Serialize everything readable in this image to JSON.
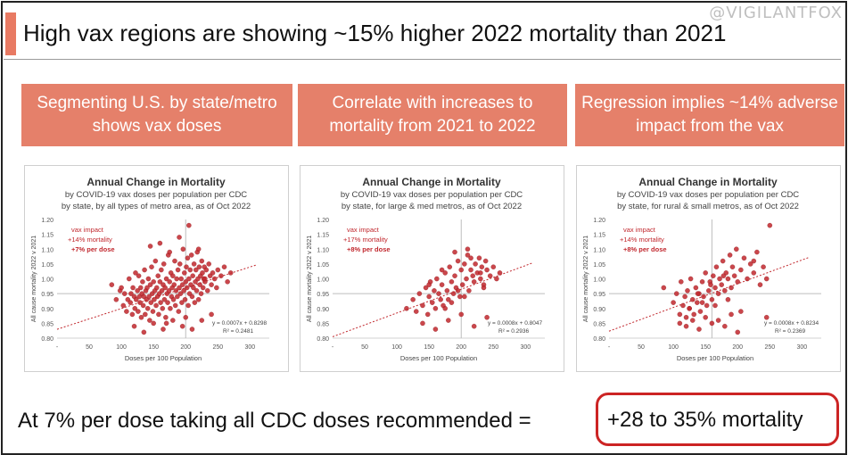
{
  "watermark": "@VIGILANTFOX",
  "title": "High vax regions are showing ~15% higher 2022 mortality than 2021",
  "headers": [
    "Segmenting U.S. by state/metro shows vax doses",
    "Correlate with increases to mortality from 2021 to 2022",
    "Regression implies ~14% adverse impact from the vax"
  ],
  "bottom_text": "At 7% per dose taking all CDC doses recommended =",
  "highlight_text": "+28 to 35% mortality",
  "colors": {
    "accent": "#e5806a",
    "point": "#c1272d",
    "highlight_border": "#cc2424"
  },
  "chart_data": [
    {
      "type": "scatter",
      "title": "Annual Change in Mortality",
      "subtitle1": "by COVID-19 vax doses per population per CDC",
      "subtitle2": "by state, by all types of metro area, as of Oct 2022",
      "xlabel": "Doses per 100 Population",
      "ylabel": "All cause mortality 2022 v 2021",
      "xlim": [
        0,
        330
      ],
      "ylim": [
        0.8,
        1.2
      ],
      "xticks": [
        50,
        100,
        150,
        200,
        250,
        300
      ],
      "yticks": [
        "0.80",
        "0.85",
        "0.90",
        "0.95",
        "1.00",
        "1.05",
        "1.10",
        "1.15",
        "1.20"
      ],
      "annotation": [
        "vax impact",
        "+14% mortality",
        "+7% per dose"
      ],
      "equation": "y = 0.0007x + 0.8298",
      "r2": "R² = 0.2481",
      "trend": {
        "slope": 0.0007,
        "intercept": 0.8298
      },
      "ref_x": 200,
      "ref_y": 0.95,
      "x": [
        85,
        92,
        98,
        100,
        103,
        105,
        108,
        110,
        112,
        114,
        115,
        117,
        118,
        120,
        121,
        122,
        123,
        125,
        126,
        127,
        128,
        129,
        130,
        131,
        132,
        133,
        134,
        135,
        136,
        137,
        138,
        139,
        140,
        141,
        142,
        143,
        144,
        145,
        146,
        147,
        148,
        149,
        150,
        151,
        152,
        153,
        154,
        155,
        156,
        157,
        158,
        159,
        160,
        161,
        162,
        163,
        164,
        165,
        166,
        167,
        168,
        169,
        170,
        171,
        172,
        173,
        174,
        175,
        176,
        177,
        178,
        179,
        180,
        181,
        182,
        183,
        184,
        185,
        186,
        187,
        188,
        189,
        190,
        191,
        192,
        193,
        194,
        195,
        196,
        197,
        198,
        199,
        200,
        201,
        202,
        203,
        204,
        205,
        206,
        207,
        208,
        209,
        210,
        211,
        212,
        213,
        214,
        215,
        216,
        217,
        218,
        219,
        220,
        221,
        222,
        223,
        224,
        225,
        226,
        227,
        228,
        229,
        230,
        232,
        234,
        236,
        238,
        240,
        242,
        245,
        248,
        250,
        255,
        260,
        265,
        270,
        120,
        135,
        150,
        165,
        180,
        195,
        210,
        225,
        240,
        160,
        175,
        190,
        205,
        220,
        145,
        170,
        200,
        230
      ],
      "y": [
        0.98,
        0.93,
        0.96,
        0.97,
        0.91,
        0.95,
        0.89,
        0.93,
        1.0,
        0.92,
        0.95,
        0.88,
        0.97,
        0.94,
        0.9,
        1.02,
        0.93,
        0.96,
        0.89,
        1.01,
        0.94,
        0.92,
        0.97,
        0.87,
        0.95,
        0.99,
        0.91,
        0.94,
        1.03,
        0.88,
        0.96,
        0.93,
        0.97,
        0.9,
        1.0,
        0.94,
        0.86,
        0.98,
        0.92,
        1.04,
        0.95,
        0.89,
        0.99,
        0.93,
        0.96,
        1.06,
        0.91,
        0.97,
        0.94,
        1.01,
        0.88,
        0.95,
        0.99,
        0.92,
        1.03,
        0.96,
        0.9,
        0.98,
        1.05,
        0.93,
        0.97,
        0.87,
        1.0,
        0.95,
        0.92,
        1.08,
        0.96,
        0.99,
        0.9,
        1.02,
        0.94,
        0.97,
        1.01,
        0.93,
        0.98,
        1.06,
        0.91,
        0.96,
        1.0,
        0.94,
        1.03,
        0.89,
        0.97,
        1.05,
        0.95,
        1.0,
        0.92,
        0.98,
        1.1,
        0.96,
        1.02,
        0.93,
        0.99,
        1.04,
        0.97,
        1.07,
        0.91,
        1.0,
        0.95,
        1.03,
        0.98,
        1.08,
        0.94,
        1.01,
        0.97,
        1.05,
        0.92,
        0.99,
        1.03,
        0.96,
        1.09,
        1.0,
        0.93,
        1.04,
        0.98,
        1.01,
        0.95,
        1.06,
        1.02,
        0.97,
        1.0,
        1.04,
        0.99,
        1.03,
        0.96,
        1.05,
        1.01,
        0.98,
        1.02,
        1.0,
        0.97,
        1.03,
        1.01,
        1.04,
        0.99,
        1.02,
        0.84,
        0.82,
        0.85,
        0.83,
        0.86,
        0.84,
        0.83,
        0.86,
        0.88,
        1.12,
        1.09,
        1.14,
        1.18,
        1.1,
        1.11,
        0.85,
        0.87,
        1.0
      ]
    },
    {
      "type": "scatter",
      "title": "Annual Change in Mortality",
      "subtitle1": "by COVID-19 vax doses per population per CDC",
      "subtitle2": "by state, for large & med metros, as of Oct 2022",
      "xlabel": "Doses per 100 Population",
      "ylabel": "All cause mortality 2022 v 2021",
      "xlim": [
        0,
        330
      ],
      "ylim": [
        0.8,
        1.2
      ],
      "xticks": [
        50,
        100,
        150,
        200,
        250,
        300
      ],
      "yticks": [
        "0.80",
        "0.85",
        "0.90",
        "0.95",
        "1.00",
        "1.05",
        "1.10",
        "1.15",
        "1.20"
      ],
      "annotation": [
        "vax impact",
        "+17% mortality",
        "+8% per dose"
      ],
      "equation": "y = 0.0008x + 0.8047",
      "r2": "R² = 0.2936",
      "trend": {
        "slope": 0.0008,
        "intercept": 0.8047
      },
      "ref_x": 200,
      "ref_y": 0.95,
      "x": [
        115,
        125,
        130,
        135,
        140,
        145,
        148,
        150,
        152,
        155,
        158,
        160,
        162,
        165,
        168,
        170,
        172,
        175,
        178,
        180,
        182,
        185,
        188,
        190,
        192,
        195,
        198,
        200,
        202,
        205,
        208,
        210,
        212,
        215,
        218,
        220,
        222,
        225,
        228,
        230,
        232,
        235,
        238,
        240,
        245,
        250,
        255,
        260,
        140,
        160,
        180,
        200,
        220,
        240,
        170,
        190,
        210,
        230,
        150,
        175,
        195,
        215,
        235,
        185,
        205
      ],
      "y": [
        0.9,
        0.93,
        0.89,
        0.95,
        0.91,
        0.97,
        0.88,
        0.94,
        0.99,
        0.92,
        0.96,
        0.9,
        1.0,
        0.95,
        0.93,
        0.98,
        0.91,
        1.02,
        0.96,
        0.93,
        1.04,
        0.99,
        0.95,
        1.01,
        0.97,
        1.06,
        0.94,
        1.03,
        0.98,
        1.05,
        1.0,
        1.08,
        0.96,
        1.03,
        1.01,
        0.99,
        1.05,
        1.02,
        1.07,
        1.0,
        1.04,
        0.98,
        1.06,
        1.03,
        1.01,
        1.04,
        1.0,
        1.02,
        0.85,
        0.83,
        0.86,
        0.88,
        0.84,
        0.87,
        1.03,
        1.09,
        1.1,
        1.02,
        0.98,
        0.9,
        0.96,
        1.07,
        0.97,
        0.92,
        0.94
      ]
    },
    {
      "type": "scatter",
      "title": "Annual Change in Mortality",
      "subtitle1": "by COVID-19 vax doses per population per CDC",
      "subtitle2": "by state, for rural & small metros, as of Oct 2022",
      "xlabel": "Doses per 100 Population",
      "ylabel": "All cause mortality 2022 v 2021",
      "xlim": [
        0,
        330
      ],
      "ylim": [
        0.8,
        1.2
      ],
      "xticks": [
        50,
        100,
        150,
        200,
        250,
        300
      ],
      "yticks": [
        "0.80",
        "0.85",
        "0.90",
        "0.95",
        "1.00",
        "1.05",
        "1.10",
        "1.15",
        "1.20"
      ],
      "annotation": [
        "vax impact",
        "+14% mortality",
        "+8% per dose"
      ],
      "equation": "y = 0.0008x + 0.8234",
      "r2": "R² = 0.2369",
      "trend": {
        "slope": 0.0008,
        "intercept": 0.8234
      },
      "ref_x": 160,
      "ref_y": 0.95,
      "x": [
        85,
        100,
        105,
        110,
        112,
        115,
        118,
        120,
        122,
        125,
        127,
        130,
        132,
        135,
        137,
        140,
        142,
        145,
        147,
        150,
        152,
        155,
        157,
        160,
        162,
        165,
        167,
        170,
        172,
        175,
        177,
        180,
        182,
        185,
        188,
        190,
        192,
        195,
        198,
        200,
        205,
        210,
        215,
        220,
        225,
        230,
        235,
        240,
        245,
        250,
        110,
        120,
        130,
        140,
        150,
        160,
        170,
        180,
        190,
        200,
        125,
        145,
        165,
        185,
        205,
        225,
        245,
        138,
        158,
        178
      ],
      "y": [
        0.97,
        0.92,
        0.95,
        0.88,
        0.99,
        0.91,
        0.94,
        0.87,
        0.96,
        0.9,
        1.0,
        0.93,
        0.88,
        0.97,
        0.92,
        0.95,
        0.89,
        0.99,
        0.94,
        1.02,
        0.91,
        0.96,
        0.99,
        0.93,
        1.01,
        0.97,
        1.04,
        0.95,
        1.0,
        0.98,
        1.06,
        0.96,
        1.02,
        1.0,
        1.08,
        0.97,
        1.04,
        1.01,
        1.1,
        0.99,
        1.03,
        1.07,
        1.0,
        1.05,
        1.02,
        1.09,
        0.98,
        1.04,
        1.0,
        1.18,
        0.85,
        0.84,
        0.86,
        0.83,
        0.87,
        0.85,
        0.86,
        0.84,
        0.88,
        0.82,
        0.9,
        0.92,
        0.91,
        0.93,
        0.89,
        1.06,
        0.87,
        0.95,
        0.98,
        1.01
      ]
    }
  ]
}
